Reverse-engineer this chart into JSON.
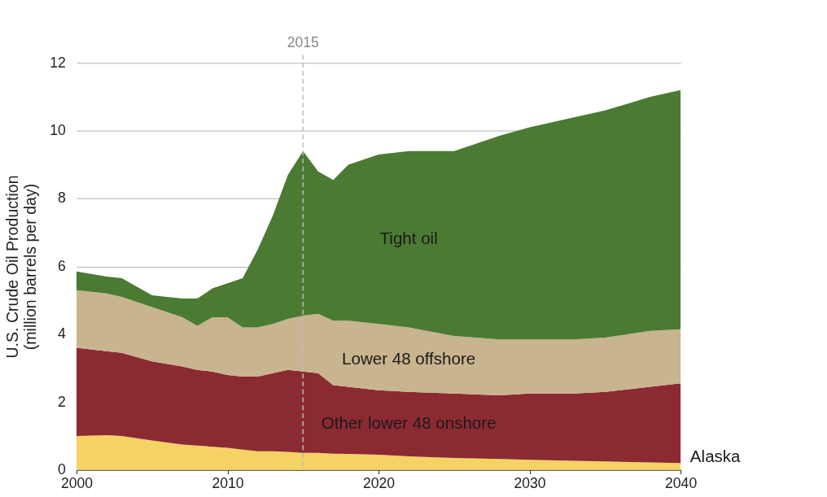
{
  "chart_data": {
    "type": "area",
    "stacked": true,
    "ylabel": "U.S. Crude Oil Production\n(million barrels per day)",
    "x": [
      2000,
      2002,
      2003,
      2005,
      2007,
      2008,
      2009,
      2010,
      2011,
      2012,
      2013,
      2014,
      2015,
      2016,
      2017,
      2018,
      2020,
      2022,
      2025,
      2028,
      2030,
      2033,
      2035,
      2038,
      2040
    ],
    "series": [
      {
        "name": "Alaska",
        "color": "#f5d264",
        "values": [
          1.0,
          1.02,
          1.0,
          0.87,
          0.75,
          0.72,
          0.68,
          0.65,
          0.6,
          0.55,
          0.55,
          0.53,
          0.5,
          0.5,
          0.48,
          0.47,
          0.45,
          0.4,
          0.35,
          0.32,
          0.3,
          0.27,
          0.25,
          0.22,
          0.2
        ]
      },
      {
        "name": "Other lower 48 onshore",
        "color": "#8c2a32",
        "values": [
          2.6,
          2.48,
          2.45,
          2.33,
          2.3,
          2.23,
          2.22,
          2.15,
          2.15,
          2.2,
          2.3,
          2.42,
          2.4,
          2.35,
          2.02,
          1.98,
          1.9,
          1.9,
          1.9,
          1.88,
          1.95,
          1.98,
          2.05,
          2.23,
          2.35
        ]
      },
      {
        "name": "Lower 48 offshore",
        "color": "#c8b48e",
        "values": [
          1.7,
          1.7,
          1.65,
          1.6,
          1.45,
          1.3,
          1.6,
          1.7,
          1.45,
          1.45,
          1.45,
          1.5,
          1.65,
          1.75,
          1.9,
          1.95,
          1.95,
          1.9,
          1.7,
          1.65,
          1.6,
          1.6,
          1.6,
          1.65,
          1.6
        ]
      },
      {
        "name": "Tight oil",
        "color": "#4b7a32",
        "values": [
          0.55,
          0.5,
          0.55,
          0.35,
          0.55,
          0.8,
          0.85,
          1.0,
          1.45,
          2.3,
          3.2,
          4.25,
          4.85,
          4.2,
          4.15,
          4.6,
          5.0,
          5.2,
          5.45,
          6.0,
          6.25,
          6.55,
          6.7,
          6.9,
          7.05
        ]
      }
    ],
    "xlim": [
      2000,
      2040
    ],
    "xticks": [
      2000,
      2010,
      2020,
      2030,
      2040
    ],
    "ylim": [
      0,
      12
    ],
    "yticks": [
      0,
      2,
      4,
      6,
      8,
      10,
      12
    ],
    "grid": "y",
    "legend": false,
    "ref_lines": [
      {
        "axis": "x",
        "value": 2015,
        "label": "2015",
        "color": "#bbbbbb",
        "line_style": "dashed"
      }
    ]
  }
}
